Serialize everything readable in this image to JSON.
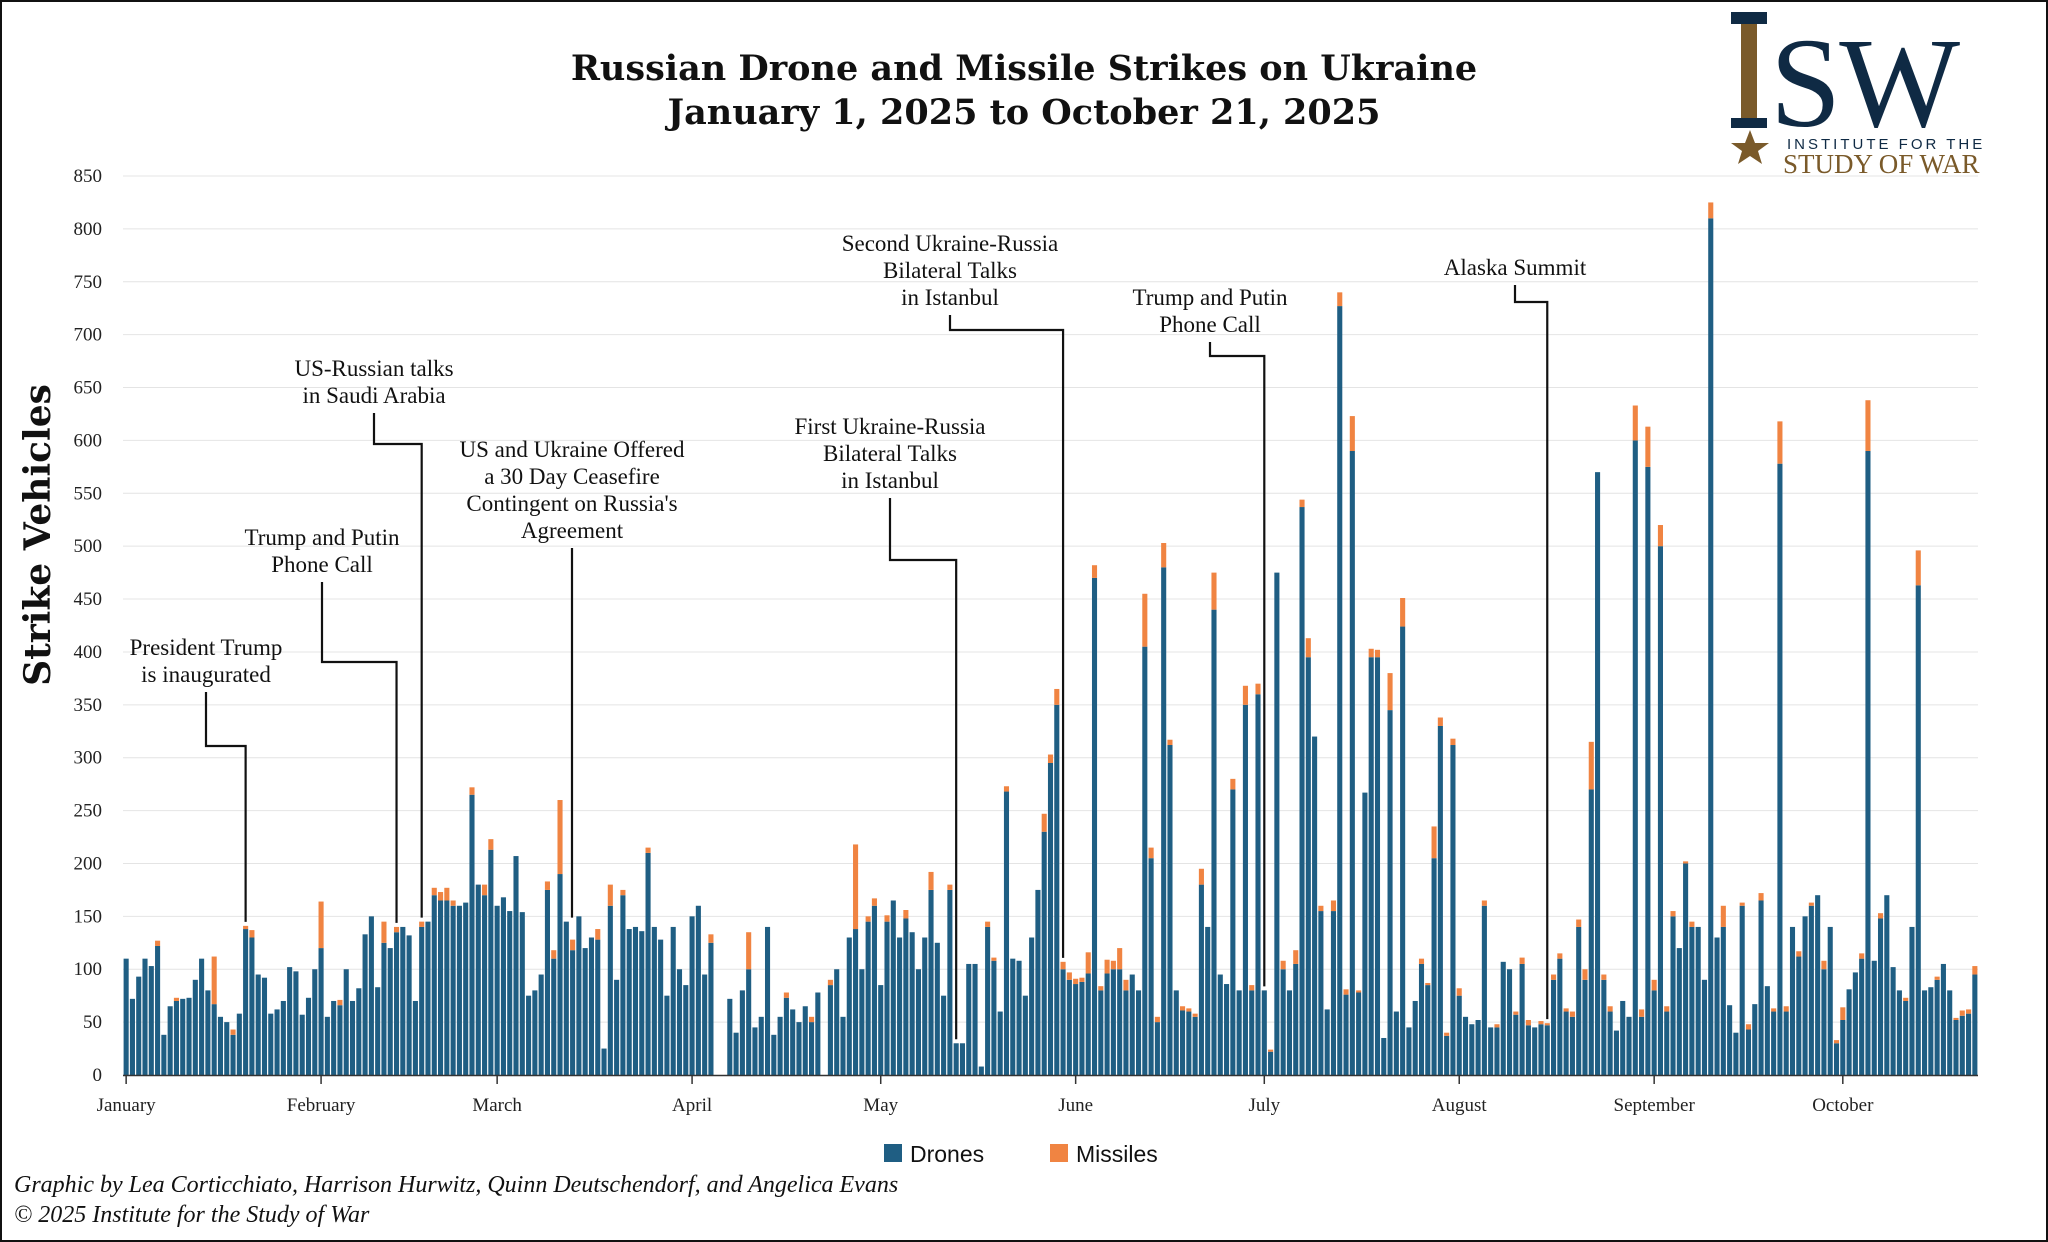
{
  "chart_data": {
    "type": "bar",
    "stacked": true,
    "title": [
      "Russian Drone and Missile Strikes on Ukraine",
      "January 1, 2025 to October 21, 2025"
    ],
    "xlabel": "",
    "ylabel": "Strike Vehicles",
    "ylim": [
      0,
      850
    ],
    "yticks": [
      0,
      50,
      100,
      150,
      200,
      250,
      300,
      350,
      400,
      450,
      500,
      550,
      600,
      650,
      700,
      750,
      800,
      850
    ],
    "x_ticks": [
      {
        "label": "January",
        "day": 0
      },
      {
        "label": "February",
        "day": 31
      },
      {
        "label": "March",
        "day": 59
      },
      {
        "label": "April",
        "day": 90
      },
      {
        "label": "May",
        "day": 120
      },
      {
        "label": "June",
        "day": 151
      },
      {
        "label": "July",
        "day": 181
      },
      {
        "label": "August",
        "day": 212
      },
      {
        "label": "September",
        "day": 243
      },
      {
        "label": "October",
        "day": 273
      }
    ],
    "grid": true,
    "legend": "bottom-center",
    "series": [
      {
        "name": "Drones",
        "color": "#1f5e83",
        "values": [
          110,
          72,
          93,
          110,
          103,
          122,
          38,
          65,
          70,
          72,
          73,
          90,
          110,
          80,
          67,
          55,
          50,
          38,
          58,
          138,
          130,
          95,
          92,
          58,
          62,
          70,
          102,
          98,
          57,
          73,
          100,
          120,
          55,
          70,
          66,
          100,
          70,
          82,
          133,
          150,
          83,
          125,
          120,
          135,
          140,
          132,
          70,
          140,
          145,
          170,
          165,
          165,
          160,
          160,
          163,
          265,
          180,
          170,
          213,
          160,
          168,
          155,
          207,
          154,
          75,
          80,
          95,
          175,
          110,
          190,
          145,
          118,
          150,
          120,
          130,
          128,
          25,
          160,
          90,
          170,
          138,
          140,
          136,
          210,
          140,
          128,
          75,
          140,
          100,
          85,
          150,
          160,
          95,
          125,
          0,
          0,
          72,
          40,
          80,
          100,
          45,
          55,
          140,
          38,
          55,
          73,
          62,
          50,
          65,
          50,
          78,
          0,
          85,
          100,
          55,
          130,
          138,
          100,
          145,
          160,
          85,
          145,
          165,
          130,
          148,
          135,
          100,
          130,
          175,
          125,
          75,
          175,
          30,
          30,
          105,
          105,
          8,
          140,
          108,
          60,
          268,
          110,
          108,
          75,
          130,
          175,
          230,
          295,
          350,
          100,
          90,
          86,
          88,
          96,
          470,
          80,
          96,
          100,
          100,
          80,
          95,
          80,
          405,
          205,
          50,
          480,
          312,
          80,
          61,
          60,
          55,
          180,
          140,
          440,
          95,
          86,
          270,
          80,
          350,
          80,
          360,
          80,
          22,
          475,
          100,
          80,
          105,
          537,
          395,
          320,
          155,
          62,
          155,
          727,
          76,
          590,
          78,
          267,
          395,
          395,
          35,
          345,
          60,
          424,
          45,
          70,
          105,
          85,
          205,
          330,
          37,
          312,
          75,
          55,
          48,
          52,
          160,
          45,
          45,
          107,
          100,
          57,
          105,
          47,
          45,
          48,
          47,
          90,
          110,
          60,
          55,
          140,
          90,
          270,
          570,
          90,
          60,
          42,
          70,
          55,
          600,
          55,
          575,
          80,
          500,
          60,
          150,
          120,
          200,
          140,
          140,
          90,
          810,
          130,
          140,
          66,
          40,
          160,
          43,
          67,
          165,
          84,
          60,
          578,
          60,
          140,
          112,
          150,
          160,
          170,
          100,
          140,
          30,
          52,
          81,
          97,
          110,
          590,
          108,
          148,
          170,
          102,
          80,
          70,
          140,
          463,
          80,
          83,
          90,
          105,
          80,
          52,
          56,
          58,
          95
        ]
      },
      {
        "name": "Missiles",
        "color": "#f08442",
        "values": [
          0,
          0,
          0,
          0,
          0,
          5,
          0,
          0,
          3,
          0,
          0,
          0,
          0,
          0,
          45,
          0,
          0,
          5,
          0,
          3,
          7,
          0,
          0,
          0,
          0,
          0,
          0,
          0,
          0,
          0,
          0,
          44,
          0,
          0,
          5,
          0,
          0,
          0,
          0,
          0,
          0,
          20,
          0,
          5,
          0,
          0,
          0,
          5,
          0,
          7,
          8,
          12,
          5,
          0,
          0,
          7,
          0,
          10,
          10,
          0,
          0,
          0,
          0,
          0,
          0,
          0,
          0,
          8,
          8,
          70,
          0,
          10,
          0,
          0,
          0,
          10,
          0,
          20,
          0,
          5,
          0,
          0,
          0,
          5,
          0,
          0,
          0,
          0,
          0,
          0,
          0,
          0,
          0,
          8,
          0,
          0,
          0,
          0,
          0,
          35,
          0,
          0,
          0,
          0,
          0,
          5,
          0,
          0,
          0,
          5,
          0,
          0,
          5,
          0,
          0,
          0,
          80,
          0,
          5,
          7,
          0,
          6,
          0,
          0,
          8,
          0,
          0,
          0,
          17,
          0,
          0,
          5,
          0,
          0,
          0,
          0,
          0,
          5,
          3,
          0,
          5,
          0,
          0,
          0,
          0,
          0,
          17,
          8,
          15,
          7,
          7,
          5,
          4,
          20,
          12,
          4,
          13,
          8,
          20,
          10,
          0,
          0,
          50,
          10,
          5,
          23,
          5,
          0,
          4,
          3,
          3,
          15,
          0,
          35,
          0,
          0,
          10,
          0,
          18,
          5,
          10,
          0,
          2,
          0,
          8,
          0,
          13,
          7,
          18,
          0,
          5,
          0,
          10,
          13,
          5,
          33,
          2,
          0,
          8,
          7,
          0,
          35,
          0,
          27,
          0,
          0,
          5,
          2,
          30,
          8,
          3,
          6,
          7,
          0,
          0,
          0,
          5,
          0,
          3,
          0,
          0,
          3,
          6,
          5,
          0,
          3,
          2,
          5,
          5,
          3,
          5,
          7,
          10,
          45,
          0,
          5,
          5,
          0,
          0,
          0,
          33,
          7,
          38,
          10,
          20,
          5,
          5,
          0,
          2,
          5,
          0,
          0,
          15,
          0,
          20,
          0,
          0,
          3,
          5,
          0,
          7,
          0,
          3,
          40,
          5,
          0,
          5,
          0,
          3,
          0,
          8,
          0,
          3,
          12,
          0,
          0,
          5,
          48,
          0,
          5,
          0,
          0,
          0,
          3,
          0,
          33,
          0,
          0,
          3,
          0,
          0,
          2,
          5,
          4,
          8
        ]
      }
    ],
    "annotations": [
      {
        "text": [
          "President Trump",
          "is inaugurated"
        ],
        "day": 19
      },
      {
        "text": [
          "Trump and Putin",
          "Phone Call"
        ],
        "day": 43
      },
      {
        "text": [
          "US-Russian talks",
          "in Saudi Arabia"
        ],
        "day": 47
      },
      {
        "text": [
          "US and Ukraine Offered",
          "a 30 Day Ceasefire",
          "Contingent on Russia's",
          "Agreement"
        ],
        "day": 70
      },
      {
        "text": [
          "First Ukraine-Russia",
          "Bilateral Talks",
          "in Istanbul"
        ],
        "day": 132
      },
      {
        "text": [
          "Second Ukraine-Russia",
          "Bilateral Talks",
          "in Istanbul"
        ],
        "day": 149
      },
      {
        "text": [
          "Trump and Putin",
          "Phone Call"
        ],
        "day": 181
      },
      {
        "text": [
          "Alaska Summit"
        ],
        "day": 226
      }
    ]
  },
  "credits": [
    "Graphic by Lea Corticchiato, Harrison Hurwitz, Quinn Deutschendorf, and Angelica Evans",
    "© 2025 Institute for the Study of War"
  ],
  "logo": {
    "letters": "ISW",
    "line1": "INSTITUTE FOR THE",
    "line2": "STUDY OF WAR",
    "navy": "#0f2a44",
    "gold": "#7a5a2a"
  }
}
